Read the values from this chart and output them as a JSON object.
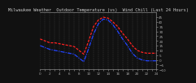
{
  "title": "Milwaukee Weather  Outdoor Temperature (vs)  Wind Chill (Last 24 Hours)",
  "bg_color": "#111111",
  "plot_bg_color": "#111111",
  "title_color": "#cccccc",
  "x_hours": [
    0,
    1,
    2,
    3,
    4,
    5,
    6,
    7,
    8,
    9,
    10,
    11,
    12,
    13,
    14,
    15,
    16,
    17,
    18,
    19,
    20,
    21,
    22,
    23,
    24
  ],
  "temp": [
    22,
    20,
    18,
    18,
    17,
    16,
    15,
    14,
    10,
    6,
    20,
    35,
    42,
    45,
    44,
    40,
    35,
    28,
    22,
    15,
    10,
    8,
    7,
    7,
    7
  ],
  "wind_chill": [
    15,
    13,
    11,
    10,
    9,
    8,
    7,
    6,
    2,
    -2,
    12,
    27,
    38,
    43,
    42,
    37,
    30,
    22,
    15,
    7,
    2,
    0,
    -1,
    -1,
    -1
  ],
  "temp_color": "#ff2222",
  "wind_chill_color": "#2244ff",
  "ylim": [
    -10,
    50
  ],
  "ytick_values": [
    45,
    40,
    35,
    30,
    25,
    20,
    15,
    10,
    5,
    0,
    -5,
    -10
  ],
  "grid_color": "#555555",
  "title_fontsize": 3.8,
  "tick_fontsize": 3.0,
  "line_width": 0.9,
  "x_tick_step": 2
}
